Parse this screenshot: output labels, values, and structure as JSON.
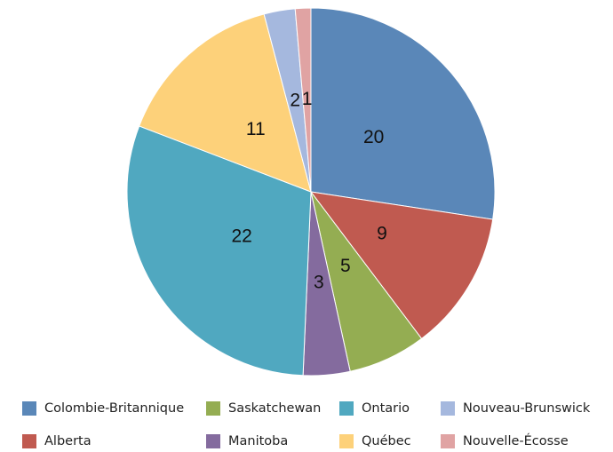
{
  "chart_data": {
    "type": "pie",
    "categories": [
      "Colombie-Britannique",
      "Alberta",
      "Saskatchewan",
      "Manitoba",
      "Ontario",
      "Québec",
      "Nouveau-Brunswick",
      "Nouvelle-Écosse"
    ],
    "values": [
      20,
      9,
      5,
      3,
      22,
      11,
      2,
      1
    ],
    "colors": [
      "#5a87b8",
      "#c05a50",
      "#94ad52",
      "#846b9e",
      "#50a8c0",
      "#fdd17a",
      "#a5b8de",
      "#e0a3a3"
    ],
    "legend": "bottom"
  }
}
